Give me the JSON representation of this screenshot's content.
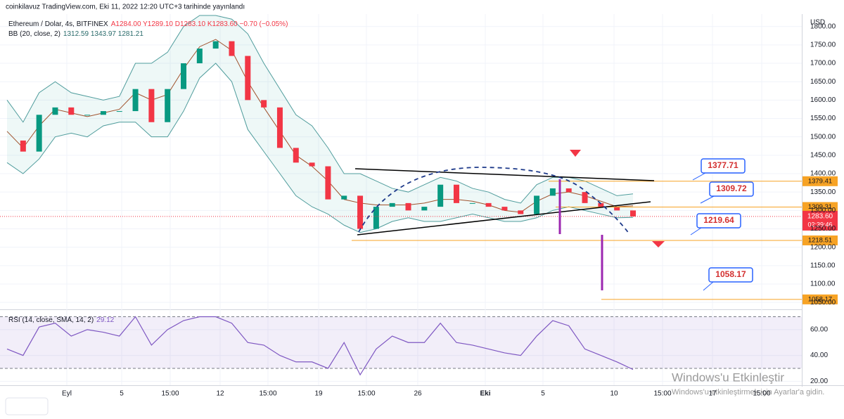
{
  "header": {
    "publisher": "coinkilavuz TradingView.com, Eki 11, 2022 12:20 UTC+3 tarihinde yayınlandı",
    "symbol": "Ethereum / Dolar, 4s, BITFINEX",
    "ohlc": "A1284.00 Y1289.10 D1283.10 K1283.60 −0.70 (−0.05%)",
    "bb_label": "BB (20, close, 2)",
    "bb_values": "1312.59 1343.97 1281.21",
    "currency": "USD"
  },
  "price_chart": {
    "type": "candlestick",
    "ylim": [
      1035,
      1830
    ],
    "yticks": [
      {
        "value": 1800,
        "label": "1800.00"
      },
      {
        "value": 1750,
        "label": "1750.00"
      },
      {
        "value": 1700,
        "label": "1700.00"
      },
      {
        "value": 1650,
        "label": "1650.00"
      },
      {
        "value": 1600,
        "label": "1600.00"
      },
      {
        "value": 1550,
        "label": "1550.00"
      },
      {
        "value": 1500,
        "label": "1500.00"
      },
      {
        "value": 1450,
        "label": "1450.00"
      },
      {
        "value": 1400,
        "label": "1400.00"
      },
      {
        "value": 1350,
        "label": "1350.00"
      },
      {
        "value": 1300,
        "label": "1300.00"
      },
      {
        "value": 1250,
        "label": "1250.00"
      },
      {
        "value": 1200,
        "label": "1200.00"
      },
      {
        "value": 1150,
        "label": "1150.00"
      },
      {
        "value": 1100,
        "label": "1100.00"
      },
      {
        "value": 1050,
        "label": "1050.00"
      }
    ],
    "closes": [
      1490,
      1460,
      1560,
      1580,
      1560,
      1560,
      1570,
      1570,
      1630,
      1540,
      1630,
      1700,
      1740,
      1760,
      1720,
      1600,
      1580,
      1470,
      1430,
      1420,
      1330,
      1340,
      1250,
      1310,
      1320,
      1300,
      1310,
      1370,
      1320,
      1320,
      1310,
      1300,
      1290,
      1340,
      1360,
      1350,
      1320,
      1310,
      1300,
      1283.6
    ],
    "bb_upper": [
      1600,
      1540,
      1620,
      1650,
      1620,
      1610,
      1600,
      1610,
      1700,
      1700,
      1730,
      1800,
      1830,
      1830,
      1820,
      1780,
      1700,
      1630,
      1560,
      1530,
      1470,
      1400,
      1400,
      1380,
      1360,
      1350,
      1370,
      1390,
      1380,
      1360,
      1350,
      1330,
      1320,
      1370,
      1390,
      1390,
      1380,
      1360,
      1340,
      1345
    ],
    "bb_basis": [
      1515,
      1470,
      1530,
      1575,
      1565,
      1555,
      1565,
      1575,
      1620,
      1600,
      1615,
      1685,
      1745,
      1765,
      1735,
      1650,
      1580,
      1515,
      1450,
      1420,
      1380,
      1330,
      1320,
      1315,
      1315,
      1315,
      1320,
      1330,
      1330,
      1325,
      1315,
      1300,
      1295,
      1325,
      1345,
      1350,
      1340,
      1325,
      1310,
      1312.59
    ],
    "bb_lower": [
      1430,
      1400,
      1440,
      1500,
      1510,
      1500,
      1530,
      1540,
      1540,
      1500,
      1500,
      1570,
      1660,
      1700,
      1650,
      1520,
      1460,
      1400,
      1340,
      1310,
      1290,
      1260,
      1240,
      1250,
      1270,
      1280,
      1270,
      1270,
      1280,
      1290,
      1280,
      1270,
      1270,
      1280,
      1300,
      1310,
      1300,
      1290,
      1280,
      1281
    ],
    "last_price": {
      "value": 1283.6,
      "label": "1283.60"
    },
    "countdown": "02:39:46",
    "levels": [
      1379.41,
      1309.31,
      1218.51,
      1058.17
    ],
    "callouts": [
      1377.71,
      1309.72,
      1219.64,
      1058.17
    ]
  },
  "rsi_chart": {
    "type": "line",
    "label": "RSI (14, close, SMA, 14, 2)",
    "value_label": "29.12",
    "ylim": [
      18,
      73
    ],
    "yticks": [
      {
        "value": 60,
        "label": "60.00"
      },
      {
        "value": 40,
        "label": "40.00"
      },
      {
        "value": 20,
        "label": "20.00"
      }
    ],
    "bands": [
      70,
      30
    ],
    "values": [
      45,
      40,
      62,
      65,
      55,
      60,
      58,
      55,
      70,
      48,
      60,
      67,
      70,
      70,
      65,
      50,
      48,
      40,
      35,
      35,
      30,
      50,
      25,
      45,
      55,
      50,
      50,
      65,
      50,
      48,
      45,
      42,
      40,
      55,
      67,
      63,
      45,
      40,
      35,
      29.12
    ]
  },
  "time_axis": [
    "Eyl",
    "5",
    "15:00",
    "12",
    "15:00",
    "19",
    "15:00",
    "26",
    "Eki",
    "5",
    "10",
    "15:00",
    "17",
    "15:00"
  ],
  "watermark": {
    "title": "Windows'u Etkinleştir",
    "subtitle": "Windows'u etkinleştirmek için Ayarlar'a gidin."
  }
}
